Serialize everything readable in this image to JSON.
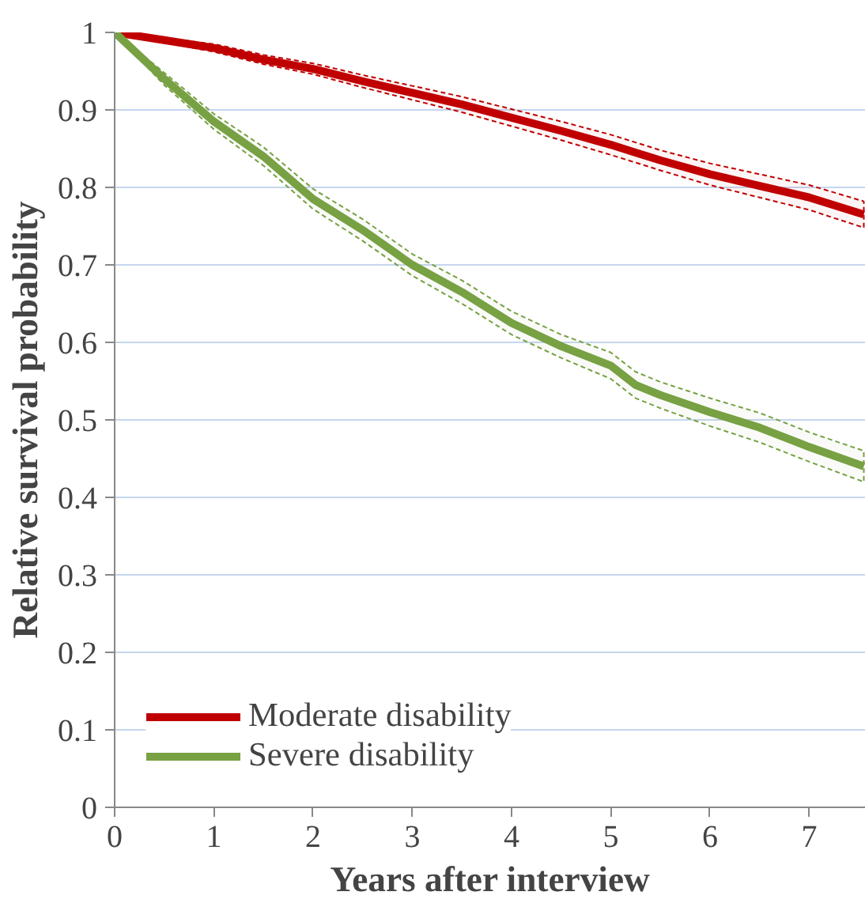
{
  "chart_data": {
    "type": "line",
    "xlabel": "Years after interview",
    "ylabel": "Relative survival probability",
    "x": [
      0,
      0.5,
      1,
      1.5,
      2,
      2.5,
      3,
      3.5,
      4,
      4.5,
      5,
      5.25,
      5.5,
      6,
      6.5,
      7,
      7.55
    ],
    "series": [
      {
        "name": "Moderate disability",
        "color": "#c00000",
        "values": [
          1,
          0.99,
          0.98,
          0.965,
          0.953,
          0.937,
          0.922,
          0.907,
          0.89,
          0.873,
          0.855,
          0.845,
          0.835,
          0.817,
          0.802,
          0.787,
          0.765
        ],
        "lower": [
          1,
          0.987,
          0.975,
          0.959,
          0.946,
          0.929,
          0.913,
          0.897,
          0.879,
          0.861,
          0.842,
          0.832,
          0.822,
          0.803,
          0.787,
          0.771,
          0.748
        ],
        "upper": [
          1,
          0.993,
          0.985,
          0.971,
          0.96,
          0.945,
          0.931,
          0.917,
          0.901,
          0.885,
          0.868,
          0.858,
          0.848,
          0.831,
          0.817,
          0.803,
          0.782
        ]
      },
      {
        "name": "Severe disability",
        "color": "#77a143",
        "values": [
          1,
          0.94,
          0.885,
          0.84,
          0.785,
          0.745,
          0.7,
          0.665,
          0.625,
          0.595,
          0.57,
          0.545,
          0.532,
          0.51,
          0.49,
          0.465,
          0.44
        ],
        "lower": [
          1,
          0.932,
          0.875,
          0.828,
          0.772,
          0.731,
          0.686,
          0.65,
          0.61,
          0.58,
          0.553,
          0.528,
          0.515,
          0.492,
          0.471,
          0.446,
          0.42
        ],
        "upper": [
          1,
          0.948,
          0.895,
          0.852,
          0.798,
          0.759,
          0.714,
          0.68,
          0.64,
          0.61,
          0.587,
          0.562,
          0.549,
          0.528,
          0.509,
          0.484,
          0.46
        ]
      }
    ],
    "xlim": [
      0,
      7.57
    ],
    "ylim": [
      0,
      1
    ],
    "xticks": [
      0,
      1,
      2,
      3,
      4,
      5,
      6,
      7
    ],
    "yticks": [
      0,
      0.1,
      0.2,
      0.3,
      0.4,
      0.5,
      0.6,
      0.7,
      0.8,
      0.9,
      1
    ],
    "grid": "y",
    "legend": "bottom left",
    "line_style": "solid",
    "marker": "none"
  }
}
